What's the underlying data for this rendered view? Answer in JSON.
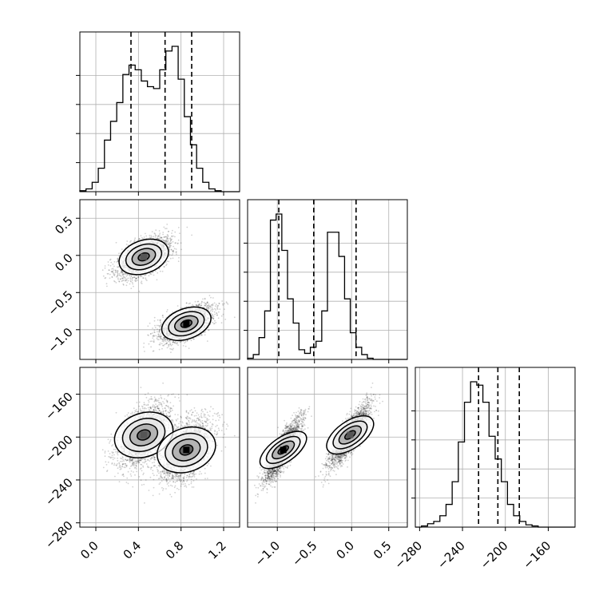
{
  "chart_data": {
    "type": "corner",
    "grid": true,
    "params": [
      {
        "range": [
          -0.15,
          1.35
        ],
        "ticks": [
          0.0,
          0.4,
          0.8,
          1.2
        ],
        "tick_labels": [
          "0.0",
          "0.4",
          "0.8",
          "1.2"
        ],
        "quantiles": [
          0.33,
          0.65,
          0.9
        ]
      },
      {
        "range": [
          -1.4,
          0.75
        ],
        "ticks": [
          -1.0,
          -0.5,
          0.0,
          0.5
        ],
        "tick_labels": [
          "−1.0",
          "−0.5",
          "0.0",
          "0.5"
        ],
        "quantiles": [
          -0.98,
          -0.51,
          0.06
        ]
      },
      {
        "range": [
          -284,
          -135
        ],
        "ticks": [
          -280,
          -240,
          -200,
          -160
        ],
        "tick_labels": [
          "−280",
          "−240",
          "−200",
          "−160"
        ],
        "quantiles": [
          -225,
          -207,
          -187
        ]
      }
    ],
    "row_tick_labels": {
      "1": [
        {
          "v": 0.5,
          "t": "0.5"
        },
        {
          "v": 0.0,
          "t": "0.0"
        },
        {
          "v": -0.5,
          "t": "−0.5"
        },
        {
          "v": -1.0,
          "t": "−1.0"
        }
      ],
      "2": [
        {
          "v": -160,
          "t": "−160"
        },
        {
          "v": -200,
          "t": "−200"
        },
        {
          "v": -240,
          "t": "−240"
        },
        {
          "v": -280,
          "t": "−280"
        }
      ]
    },
    "histograms": [
      {
        "bins": 26,
        "counts": [
          1,
          3,
          10,
          25,
          55,
          75,
          95,
          125,
          135,
          130,
          118,
          112,
          110,
          130,
          150,
          155,
          120,
          80,
          50,
          25,
          10,
          3,
          1,
          0,
          0,
          0
        ]
      },
      {
        "bins": 28,
        "counts": [
          1,
          4,
          18,
          40,
          115,
          120,
          90,
          50,
          30,
          8,
          5,
          10,
          15,
          40,
          105,
          105,
          85,
          50,
          22,
          10,
          4,
          1,
          0,
          0,
          0,
          0,
          0,
          0
        ]
      },
      {
        "bins": 26,
        "counts": [
          0,
          1,
          3,
          5,
          10,
          20,
          40,
          75,
          110,
          128,
          125,
          110,
          80,
          60,
          40,
          20,
          10,
          5,
          2,
          1,
          0,
          0,
          0,
          0,
          0,
          0
        ]
      }
    ],
    "clusters": [
      {
        "mean": [
          0.45,
          -0.02,
          -198
        ],
        "sd": [
          0.12,
          0.13,
          14
        ],
        "rho": [
          0.55,
          0.5,
          0.85
        ],
        "weight": 0.5
      },
      {
        "mean": [
          0.85,
          -0.92,
          -212
        ],
        "sd": [
          0.12,
          0.12,
          14
        ],
        "rho": [
          0.55,
          0.5,
          0.85
        ],
        "weight": 0.5
      }
    ]
  }
}
